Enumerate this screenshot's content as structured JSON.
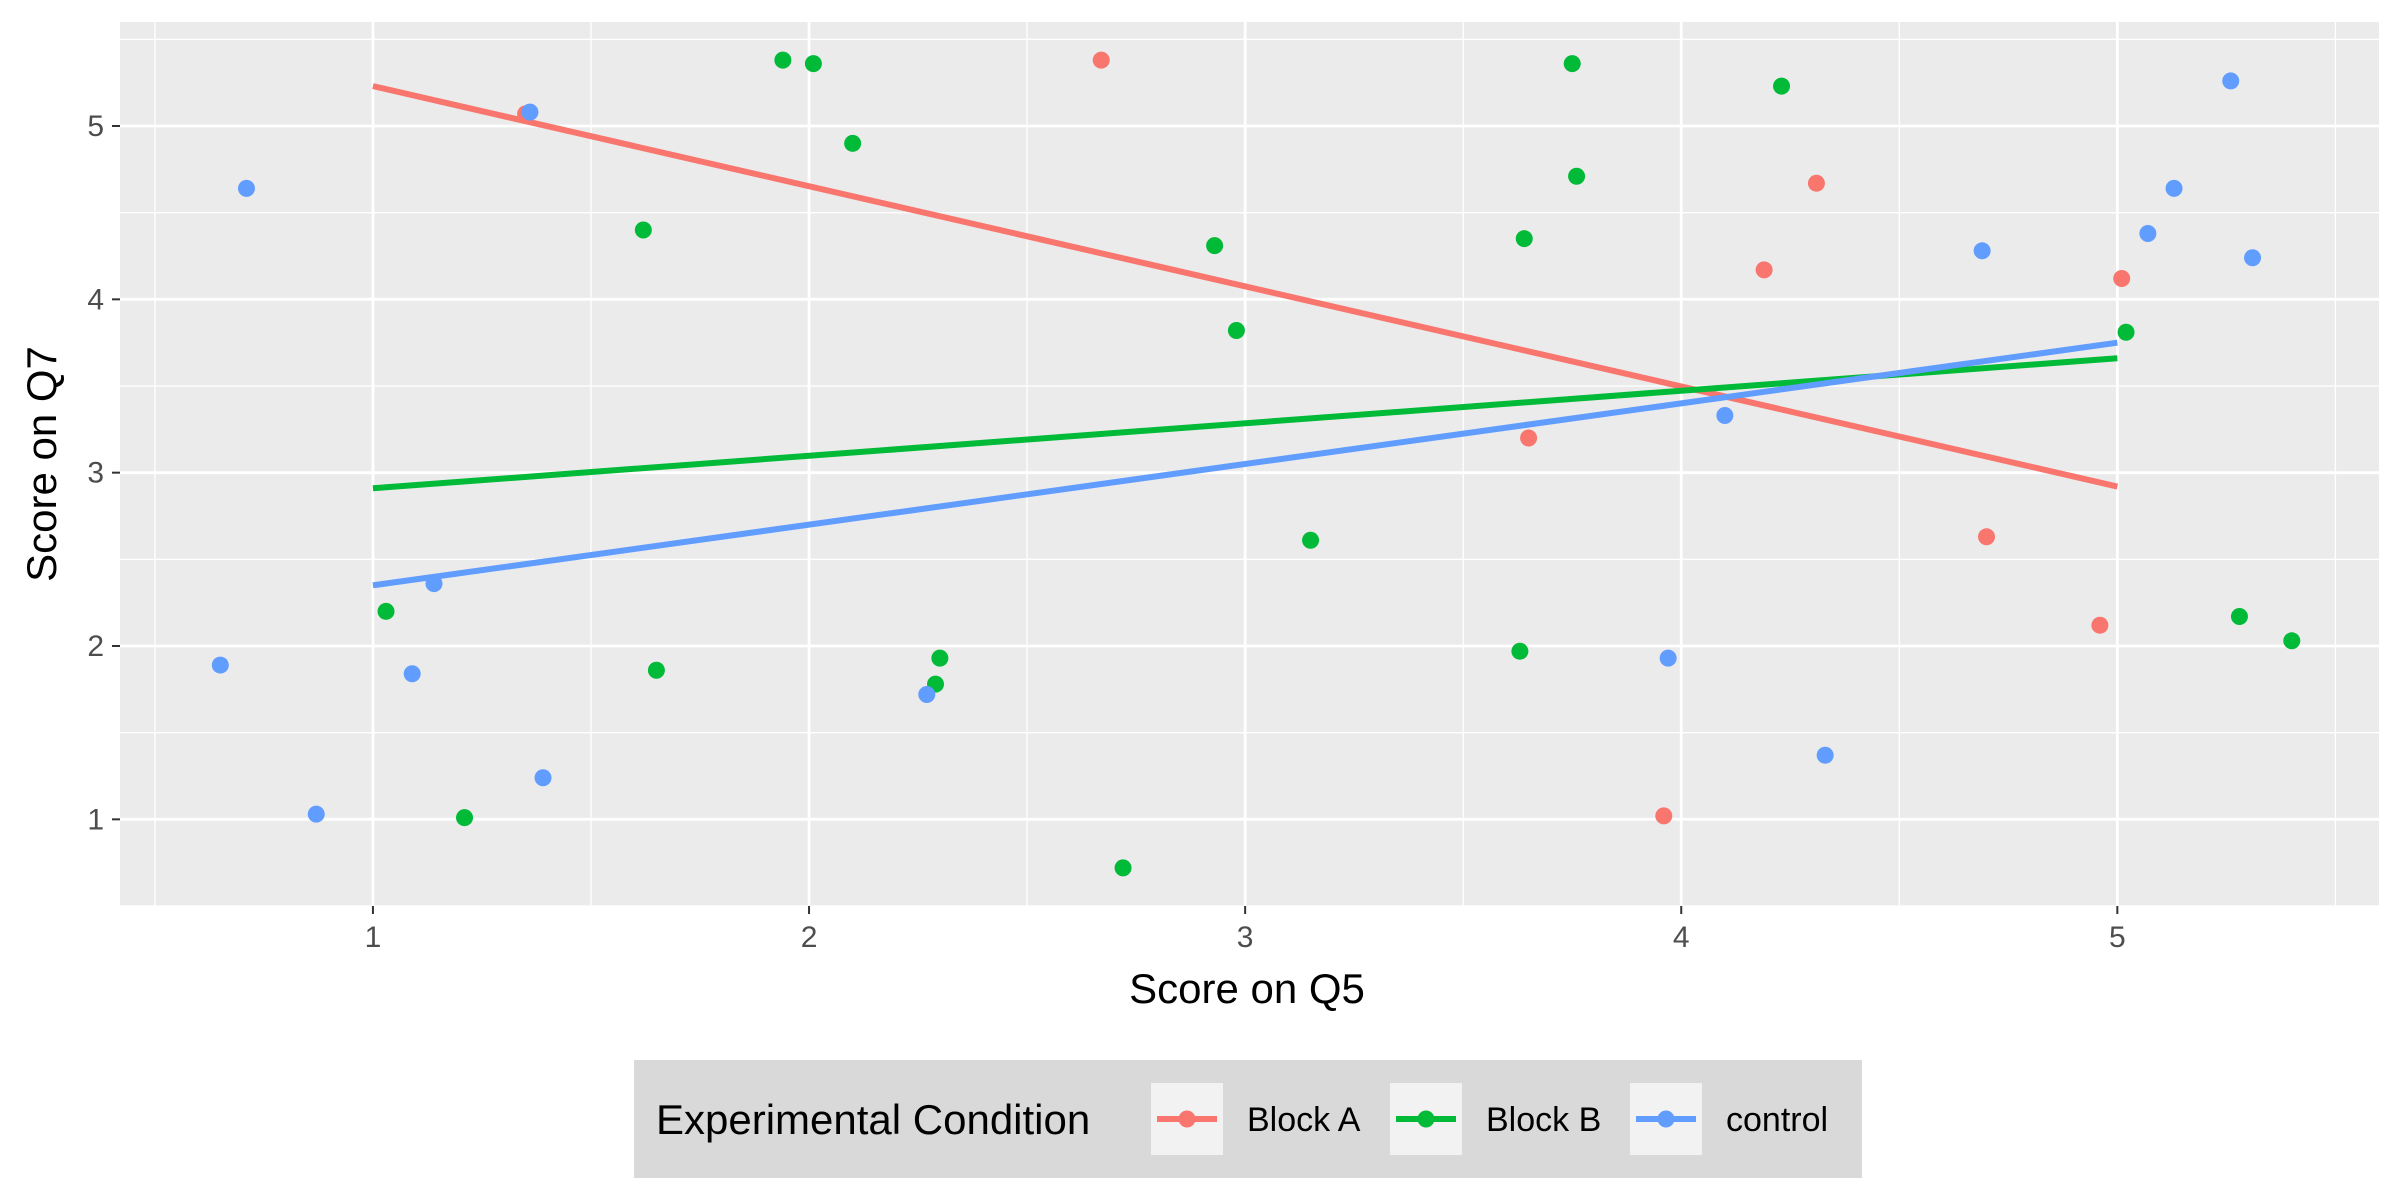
{
  "chart_data": {
    "type": "scatter",
    "xlabel": "Score on Q5",
    "ylabel": "Score on Q7",
    "xlim": [
      0.42,
      5.6
    ],
    "ylim": [
      0.5,
      5.6
    ],
    "x_ticks": [
      1,
      2,
      3,
      4,
      5
    ],
    "y_ticks": [
      1,
      2,
      3,
      4,
      5
    ],
    "grid": true,
    "legend": {
      "title": "Experimental Condition",
      "position": "bottom"
    },
    "series": [
      {
        "name": "Block A",
        "color": "#F8766D",
        "points": [
          [
            1.35,
            5.07
          ],
          [
            2.67,
            5.38
          ],
          [
            4.31,
            4.67
          ],
          [
            4.19,
            4.17
          ],
          [
            5.01,
            4.12
          ],
          [
            3.65,
            3.2
          ],
          [
            4.7,
            2.63
          ],
          [
            4.96,
            2.12
          ],
          [
            3.96,
            1.02
          ]
        ],
        "fit": {
          "x": [
            1,
            5
          ],
          "y": [
            5.23,
            2.92
          ]
        }
      },
      {
        "name": "Block B",
        "color": "#00BA38",
        "points": [
          [
            1.94,
            5.38
          ],
          [
            2.01,
            5.36
          ],
          [
            3.75,
            5.36
          ],
          [
            4.23,
            5.23
          ],
          [
            2.1,
            4.9
          ],
          [
            3.76,
            4.71
          ],
          [
            1.62,
            4.4
          ],
          [
            3.64,
            4.35
          ],
          [
            2.93,
            4.31
          ],
          [
            2.98,
            3.82
          ],
          [
            5.02,
            3.81
          ],
          [
            3.15,
            2.61
          ],
          [
            1.03,
            2.2
          ],
          [
            5.28,
            2.17
          ],
          [
            5.4,
            2.03
          ],
          [
            3.63,
            1.97
          ],
          [
            2.3,
            1.93
          ],
          [
            1.65,
            1.86
          ],
          [
            2.29,
            1.78
          ],
          [
            1.21,
            1.01
          ],
          [
            2.72,
            0.72
          ]
        ],
        "fit": {
          "x": [
            1,
            5
          ],
          "y": [
            2.91,
            3.66
          ]
        }
      },
      {
        "name": "control",
        "color": "#619CFF",
        "points": [
          [
            1.36,
            5.08
          ],
          [
            5.26,
            5.26
          ],
          [
            0.71,
            4.64
          ],
          [
            5.13,
            4.64
          ],
          [
            5.07,
            4.38
          ],
          [
            4.69,
            4.28
          ],
          [
            5.31,
            4.24
          ],
          [
            4.1,
            3.33
          ],
          [
            1.14,
            2.36
          ],
          [
            3.97,
            1.93
          ],
          [
            0.65,
            1.89
          ],
          [
            1.09,
            1.84
          ],
          [
            2.27,
            1.72
          ],
          [
            4.33,
            1.37
          ],
          [
            1.39,
            1.24
          ],
          [
            0.87,
            1.03
          ]
        ],
        "fit": {
          "x": [
            1,
            5
          ],
          "y": [
            2.35,
            3.75
          ]
        }
      }
    ]
  }
}
